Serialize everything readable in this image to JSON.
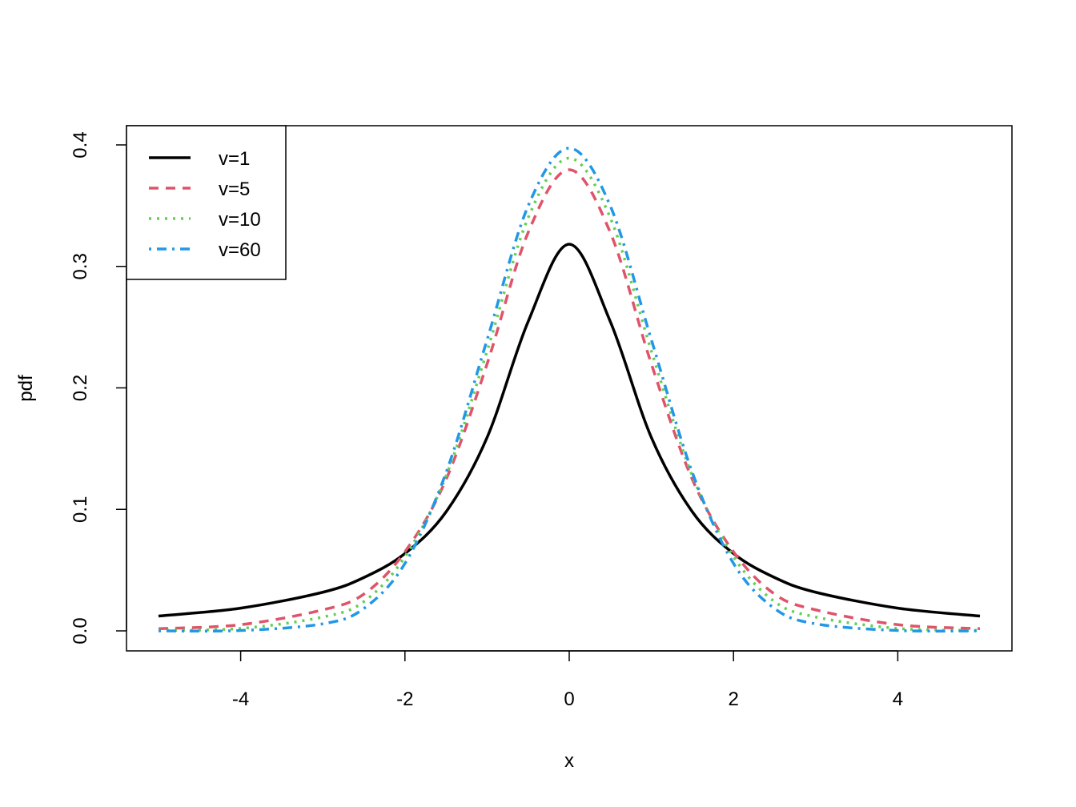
{
  "chart_data": {
    "type": "line",
    "xlabel": "x",
    "ylabel": "pdf",
    "xlim": [
      -5,
      5
    ],
    "ylim": [
      0,
      0.4
    ],
    "x_ticks": [
      -4,
      -2,
      0,
      2,
      4
    ],
    "x_tick_labels": [
      "-4",
      "-2",
      "0",
      "2",
      "4"
    ],
    "y_ticks": [
      0,
      0.1,
      0.2,
      0.3,
      0.4
    ],
    "y_tick_labels": [
      "0.0",
      "0.1",
      "0.2",
      "0.3",
      "0.4"
    ],
    "legend_position": "top-left",
    "x": [
      -5,
      -4,
      -3,
      -2.5,
      -2,
      -1.5,
      -1,
      -0.5,
      0,
      0.5,
      1,
      1.5,
      2,
      2.5,
      3,
      4,
      5
    ],
    "series": [
      {
        "name": "v=1",
        "color": "#000000",
        "dash": "solid",
        "values": [
          0.0122,
          0.0187,
          0.0318,
          0.0439,
          0.0637,
          0.0979,
          0.1592,
          0.2546,
          0.3183,
          0.2546,
          0.1592,
          0.0979,
          0.0637,
          0.0439,
          0.0318,
          0.0187,
          0.0122
        ]
      },
      {
        "name": "v=5",
        "color": "#DF536B",
        "dash": "dashed",
        "values": [
          0.0018,
          0.0051,
          0.0173,
          0.0303,
          0.0651,
          0.1245,
          0.2197,
          0.3279,
          0.3796,
          0.3279,
          0.2197,
          0.1245,
          0.0651,
          0.0303,
          0.0173,
          0.0051,
          0.0018
        ]
      },
      {
        "name": "v=10",
        "color": "#61D04F",
        "dash": "dotted",
        "values": [
          0.0004,
          0.002,
          0.0114,
          0.0241,
          0.0611,
          0.1274,
          0.2304,
          0.34,
          0.3891,
          0.34,
          0.2304,
          0.1274,
          0.0611,
          0.0241,
          0.0114,
          0.002,
          0.0004
        ]
      },
      {
        "name": "v=60",
        "color": "#2297E6",
        "dash": "dotdash",
        "values": [
          0.0,
          0.0003,
          0.0058,
          0.0184,
          0.0555,
          0.1301,
          0.2396,
          0.3498,
          0.3973,
          0.3498,
          0.2396,
          0.1301,
          0.0555,
          0.0184,
          0.0058,
          0.0003,
          0.0
        ]
      }
    ]
  }
}
